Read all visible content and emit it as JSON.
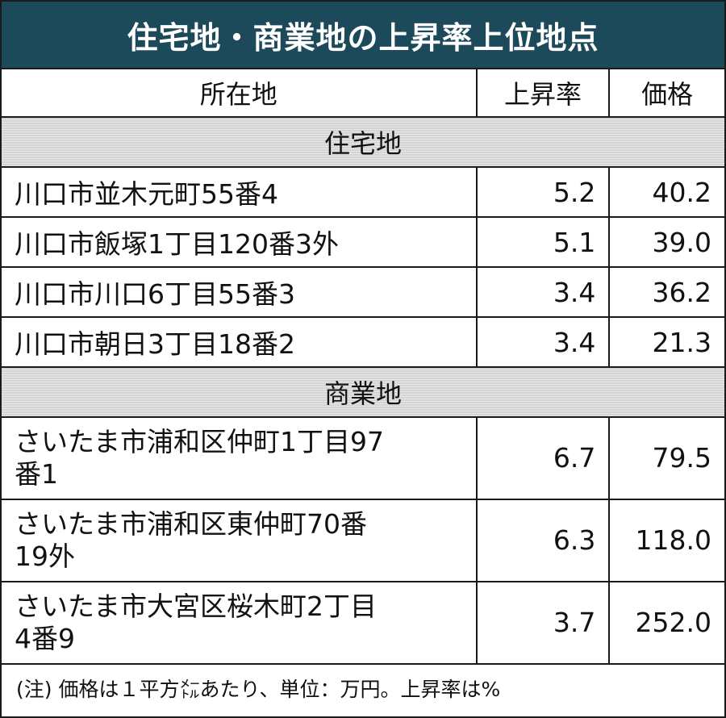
{
  "title": "住宅地・商業地の上昇率上位地点",
  "headers": {
    "location": "所在地",
    "rate": "上昇率",
    "price": "価格"
  },
  "sections": [
    {
      "label": "住宅地",
      "rows": [
        {
          "location": "川口市並木元町55番4",
          "rate": "5.2",
          "price": "40.2"
        },
        {
          "location": "川口市飯塚1丁目120番3外",
          "rate": "5.1",
          "price": "39.0"
        },
        {
          "location": "川口市川口6丁目55番3",
          "rate": "3.4",
          "price": "36.2"
        },
        {
          "location": "川口市朝日3丁目18番2",
          "rate": "3.4",
          "price": "21.3"
        }
      ]
    },
    {
      "label": "商業地",
      "rows": [
        {
          "location_line1": "さいたま市浦和区仲町1丁目97",
          "location_line2": "番1",
          "rate": "6.7",
          "price": "79.5"
        },
        {
          "location_line1": "さいたま市浦和区東仲町70番",
          "location_line2": "19外",
          "rate": "6.3",
          "price": "118.0"
        },
        {
          "location_line1": "さいたま市大宮区桜木町2丁目",
          "location_line2": "4番9",
          "rate": "3.7",
          "price": "252.0"
        }
      ]
    }
  ],
  "note": "(注) 価格は１平方㍍あたり、単位：万円。上昇率は%"
}
